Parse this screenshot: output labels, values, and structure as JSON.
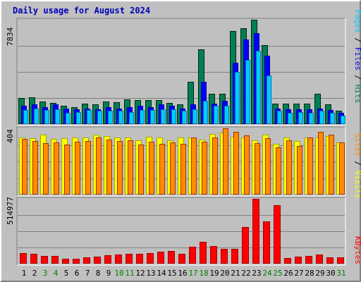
{
  "title": "Daily usage for August 2024",
  "days": [
    "1",
    "2",
    "3",
    "4",
    "5",
    "6",
    "7",
    "8",
    "9",
    "10",
    "11",
    "12",
    "13",
    "14",
    "15",
    "16",
    "17",
    "18",
    "19",
    "20",
    "21",
    "22",
    "23",
    "24",
    "25",
    "26",
    "27",
    "28",
    "29",
    "30",
    "31"
  ],
  "weekend_days": [
    3,
    4,
    10,
    11,
    17,
    18,
    24,
    25,
    31
  ],
  "colors": {
    "hits": "#007f57",
    "files": "#0000ff",
    "pages": "#00ccff",
    "visits": "#ffff00",
    "sites": "#ff8c00",
    "kbytes": "#ff0000",
    "weekday_label": "#000000",
    "weekend_label": "#007f00",
    "background": "#c0c0c0",
    "gridline": "#808080"
  },
  "chart_data": [
    {
      "type": "bar",
      "name": "hits-files-pages",
      "ylabel_max": "7834",
      "ylim": [
        0,
        7834
      ],
      "legend": [
        "Pages",
        "Files",
        "Hits"
      ],
      "series": [
        {
          "name": "Hits",
          "color": "#007f57",
          "values": [
            1975,
            2037,
            1699,
            1596,
            1354,
            1293,
            1539,
            1478,
            1699,
            1662,
            1834,
            1822,
            1822,
            1822,
            1601,
            1478,
            3201,
            5600,
            2296,
            2296,
            6993,
            7218,
            7834,
            5944,
            1539,
            1539,
            1539,
            1539,
            2296,
            1478,
            1000
          ]
        },
        {
          "name": "Files",
          "color": "#0000ff",
          "values": [
            1354,
            1478,
            1293,
            1478,
            1170,
            1108,
            1170,
            1108,
            1293,
            1170,
            1293,
            1354,
            1293,
            1478,
            1354,
            1170,
            1478,
            3201,
            1539,
            1724,
            4622,
            6368,
            6807,
            5145,
            1170,
            1108,
            1108,
            1108,
            1170,
            1047,
            863
          ]
        },
        {
          "name": "Pages",
          "color": "#00ccff",
          "values": [
            1047,
            1170,
            1047,
            1108,
            863,
            925,
            1047,
            986,
            986,
            986,
            925,
            1047,
            1047,
            1108,
            1108,
            986,
            1108,
            1724,
            1354,
            1354,
            3942,
            4805,
            5501,
            3632,
            986,
            863,
            925,
            863,
            986,
            863,
            617
          ]
        }
      ]
    },
    {
      "type": "bar",
      "name": "visits-sites",
      "ylabel_max": "404",
      "ylim": [
        0,
        404
      ],
      "legend": [
        "Sites",
        "Visits"
      ],
      "series": [
        {
          "name": "Visits",
          "color": "#ffff00",
          "values": [
            348,
            343,
            365,
            339,
            342,
            350,
            346,
            367,
            357,
            350,
            346,
            332,
            352,
            346,
            332,
            346,
            346,
            335,
            371,
            380,
            352,
            350,
            332,
            367,
            311,
            346,
            325,
            350,
            350,
            357,
            317
          ]
        },
        {
          "name": "Sites",
          "color": "#ff8c00",
          "values": [
            339,
            328,
            313,
            320,
            306,
            323,
            325,
            346,
            335,
            328,
            330,
            306,
            324,
            308,
            318,
            311,
            346,
            324,
            346,
            404,
            383,
            361,
            313,
            344,
            290,
            331,
            295,
            346,
            382,
            364,
            319
          ]
        }
      ]
    },
    {
      "type": "bar",
      "name": "kbytes",
      "ylabel_max": "514977",
      "ylim": [
        0,
        514977
      ],
      "legend": [
        "KBytes"
      ],
      "series": [
        {
          "name": "KBytes",
          "color": "#ff0000",
          "values": [
            82000,
            77000,
            60000,
            62000,
            40000,
            41000,
            52000,
            58000,
            69000,
            71000,
            79000,
            76000,
            85000,
            93000,
            103000,
            76000,
            132000,
            175000,
            139000,
            119000,
            120000,
            291000,
            514977,
            336000,
            462000,
            46000,
            55000,
            62000,
            70000,
            52000,
            48000
          ]
        }
      ]
    }
  ]
}
